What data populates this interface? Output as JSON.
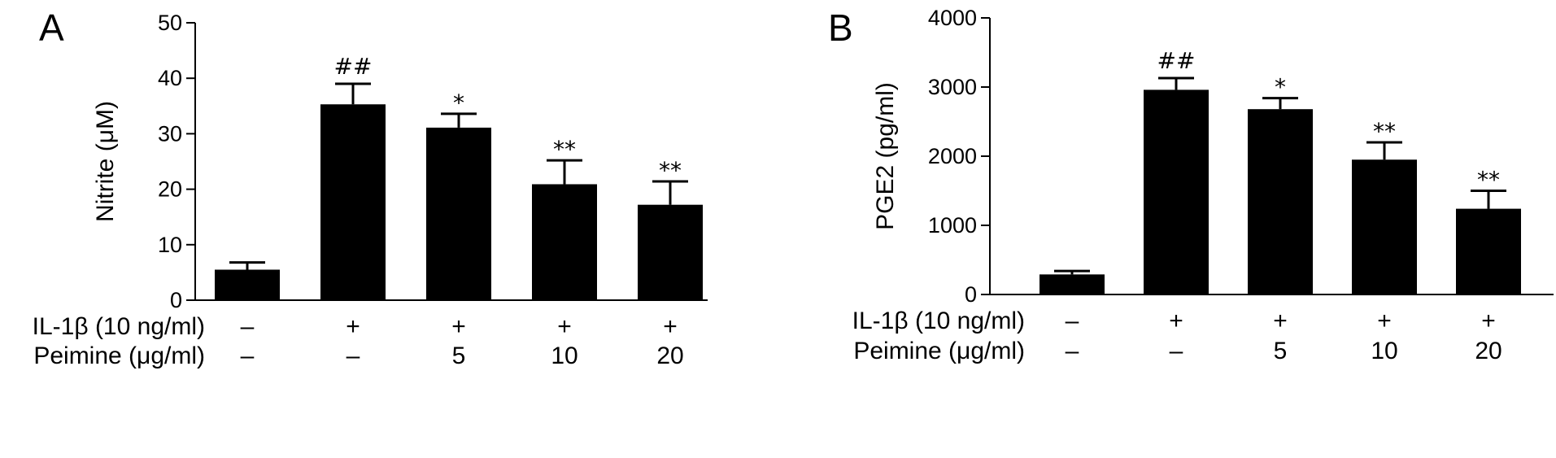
{
  "chart_data": [
    {
      "type": "bar",
      "panel": "A",
      "ylabel": "Nitrite (μM)",
      "ylim": [
        0,
        50
      ],
      "yticks": [
        0,
        10,
        20,
        30,
        40,
        50
      ],
      "values": [
        5.5,
        35.3,
        31.1,
        20.9,
        17.2
      ],
      "errors": [
        1.3,
        3.7,
        2.5,
        4.3,
        4.2
      ],
      "significance": [
        "",
        "##",
        "*",
        "**",
        "**"
      ],
      "conditions": [
        {
          "label": "IL-1β (10 ng/ml)",
          "values": [
            "–",
            "+",
            "+",
            "+",
            "+"
          ]
        },
        {
          "label": "Peimine (μg/ml)",
          "values": [
            "–",
            "–",
            "5",
            "10",
            "20"
          ]
        }
      ],
      "bar_color": "#000000"
    },
    {
      "type": "bar",
      "panel": "B",
      "ylabel": "PGE2 (pg/ml)",
      "ylim": [
        0,
        4000
      ],
      "yticks": [
        0,
        1000,
        2000,
        3000,
        4000
      ],
      "values": [
        290,
        2960,
        2680,
        1950,
        1240
      ],
      "errors": [
        50,
        170,
        160,
        250,
        260
      ],
      "significance": [
        "",
        "##",
        "*",
        "**",
        "**"
      ],
      "conditions": [
        {
          "label": "IL-1β (10 ng/ml)",
          "values": [
            "–",
            "+",
            "+",
            "+",
            "+"
          ]
        },
        {
          "label": "Peimine (μg/ml)",
          "values": [
            "–",
            "–",
            "5",
            "10",
            "20"
          ]
        }
      ],
      "bar_color": "#000000"
    }
  ]
}
